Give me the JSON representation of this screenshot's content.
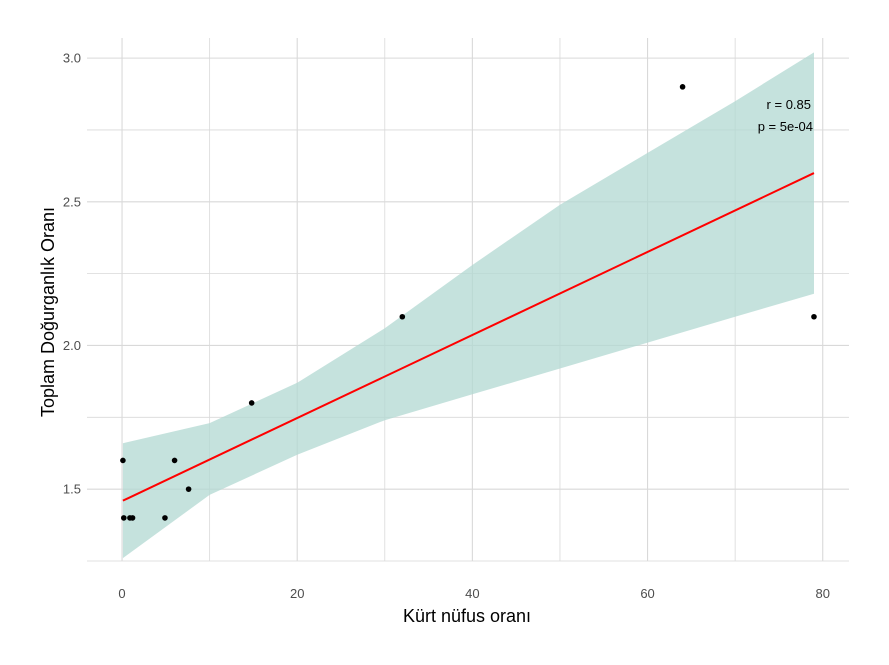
{
  "chart_data": {
    "type": "scatter",
    "xlabel": "Kürt nüfus oranı",
    "ylabel": "Toplam Doğurganlık Oranı",
    "xlim": [
      -4,
      83
    ],
    "ylim": [
      1.25,
      3.07
    ],
    "x_ticks": [
      0,
      20,
      40,
      60,
      80
    ],
    "x_tick_labels": [
      "0",
      "20",
      "40",
      "60",
      "80"
    ],
    "y_ticks": [
      1.5,
      2.0,
      2.5,
      3.0
    ],
    "y_tick_labels": [
      "1.5",
      "2.0",
      "2.5",
      "3.0"
    ],
    "grid": true,
    "points": [
      {
        "x": 0.1,
        "y": 1.6
      },
      {
        "x": 0.2,
        "y": 1.4
      },
      {
        "x": 0.9,
        "y": 1.4
      },
      {
        "x": 1.2,
        "y": 1.4
      },
      {
        "x": 4.9,
        "y": 1.4
      },
      {
        "x": 6.0,
        "y": 1.6
      },
      {
        "x": 7.6,
        "y": 1.5
      },
      {
        "x": 14.8,
        "y": 1.8
      },
      {
        "x": 32.0,
        "y": 2.1
      },
      {
        "x": 64.0,
        "y": 2.9
      },
      {
        "x": 79.0,
        "y": 2.1
      }
    ],
    "fit_line": {
      "x": [
        0.1,
        79.0
      ],
      "y": [
        1.46,
        2.6
      ]
    },
    "confidence_band": {
      "x": [
        0.1,
        10,
        20,
        30,
        40,
        50,
        60,
        70,
        79
      ],
      "lower": [
        1.26,
        1.48,
        1.62,
        1.74,
        1.83,
        1.92,
        2.01,
        2.1,
        2.18
      ],
      "upper": [
        1.66,
        1.73,
        1.87,
        2.06,
        2.28,
        2.49,
        2.67,
        2.85,
        3.02
      ]
    },
    "colors": {
      "points": "#000000",
      "fit_line": "#ff0000",
      "band": "#b2d8d1",
      "grid": "#d9d9d9"
    },
    "annotations": [
      "r = 0.85",
      "p = 5e-04"
    ]
  }
}
